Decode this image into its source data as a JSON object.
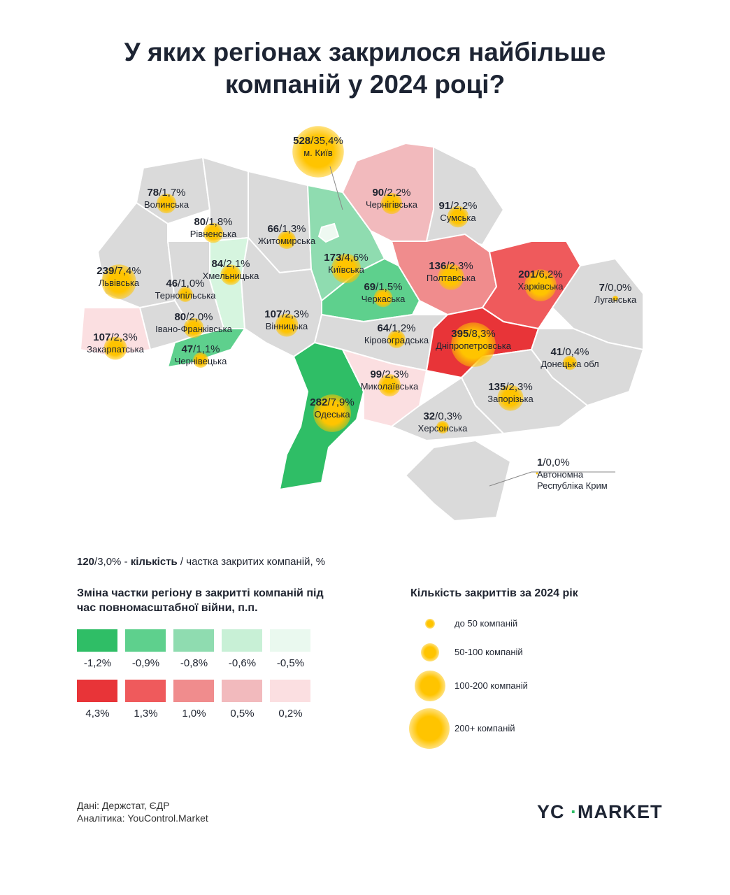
{
  "title": "У яких регіонах закрилося найбільше компаній у 2024 році?",
  "separator": "/",
  "regions": [
    {
      "name": "м. Київ",
      "count": 528,
      "share": "35,4%",
      "color": "#eef9f1"
    },
    {
      "name": "Волинська",
      "count": 78,
      "share": "1,7%",
      "color": "#dadada"
    },
    {
      "name": "Рівненська",
      "count": 80,
      "share": "1,8%",
      "color": "#dadada"
    },
    {
      "name": "Житомирська",
      "count": 66,
      "share": "1,3%",
      "color": "#dadada"
    },
    {
      "name": "Хмельницька",
      "count": 84,
      "share": "2,1%",
      "color": "#d6f5df"
    },
    {
      "name": "Львівська",
      "count": 239,
      "share": "7,4%",
      "color": "#dadada"
    },
    {
      "name": "Тернопільська",
      "count": 46,
      "share": "1,0%",
      "color": "#dadada"
    },
    {
      "name": "Івано-Франківська",
      "count": 80,
      "share": "2,0%",
      "color": "#dadada"
    },
    {
      "name": "Закарпатська",
      "count": 107,
      "share": "2,3%",
      "color": "#fbdfe1"
    },
    {
      "name": "Чернівецька",
      "count": 47,
      "share": "1,1%",
      "color": "#5ed08d"
    },
    {
      "name": "Вінницька",
      "count": 107,
      "share": "2,3%",
      "color": "#dadada"
    },
    {
      "name": "Київська",
      "count": 173,
      "share": "4,6%",
      "color": "#8fdcb0"
    },
    {
      "name": "Черкаська",
      "count": 69,
      "share": "1,5%",
      "color": "#5ed08d"
    },
    {
      "name": "Кіровоградська",
      "count": 64,
      "share": "1,2%",
      "color": "#dadada"
    },
    {
      "name": "Одеська",
      "count": 282,
      "share": "7,9%",
      "color": "#2fbe66"
    },
    {
      "name": "Миколаївська",
      "count": 99,
      "share": "2,3%",
      "color": "#fbdfe1"
    },
    {
      "name": "Чернігівська",
      "count": 90,
      "share": "2,2%",
      "color": "#f2babd"
    },
    {
      "name": "Сумська",
      "count": 91,
      "share": "2,2%",
      "color": "#dadada"
    },
    {
      "name": "Полтавська",
      "count": 136,
      "share": "2,3%",
      "color": "#f08c8d"
    },
    {
      "name": "Харківська",
      "count": 201,
      "share": "6,2%",
      "color": "#ef5a5c"
    },
    {
      "name": "Луганська",
      "count": 7,
      "share": "0,0%",
      "color": "#dadada"
    },
    {
      "name": "Дніпропетровська",
      "count": 395,
      "share": "8,3%",
      "color": "#e83438"
    },
    {
      "name": "Донецька обл",
      "count": 41,
      "share": "0,4%",
      "color": "#dadada"
    },
    {
      "name": "Запорізька",
      "count": 135,
      "share": "2,3%",
      "color": "#dadada"
    },
    {
      "name": "Херсонська",
      "count": 32,
      "share": "0,3%",
      "color": "#dadada"
    },
    {
      "name": "Автономна Республіка Крим",
      "count": 1,
      "share": "0,0%",
      "color": "#dadada"
    }
  ],
  "legend_example": {
    "count": 120,
    "share": "3,0%",
    "dash": " - ",
    "bold": "кількість",
    "rest": " / частка закритих компаній, %"
  },
  "change_legend": {
    "title": "Зміна частки регіону в закритті компаній під час повномасштабної війни, п.п.",
    "decrease": [
      {
        "label": "-1,2%",
        "color": "#2fbe66"
      },
      {
        "label": "-0,9%",
        "color": "#5ed08d"
      },
      {
        "label": "-0,8%",
        "color": "#8fdcb0"
      },
      {
        "label": "-0,6%",
        "color": "#c8f0d6"
      },
      {
        "label": "-0,5%",
        "color": "#eaf9ef"
      }
    ],
    "increase": [
      {
        "label": "4,3%",
        "color": "#e83438"
      },
      {
        "label": "1,3%",
        "color": "#ef5a5c"
      },
      {
        "label": "1,0%",
        "color": "#f08c8d"
      },
      {
        "label": "0,5%",
        "color": "#f2babd"
      },
      {
        "label": "0,2%",
        "color": "#fbdfe1"
      }
    ]
  },
  "size_legend": {
    "title": "Кількість закриттів за 2024 рік",
    "items": [
      "до 50 компаній",
      "50-100 компаній",
      "100-200 компаній",
      "200+ компаній"
    ]
  },
  "footer": {
    "source": "Дані: Держстат, ЄДР",
    "analytics": "Аналітика: YouControl.Market"
  },
  "logo": {
    "left": "YC",
    "right": "MARKET"
  }
}
